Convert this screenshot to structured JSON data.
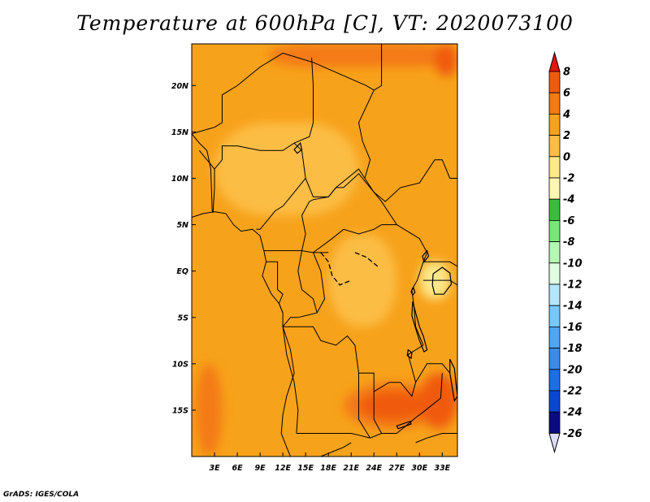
{
  "title": "Temperature at 600hPa [C], VT: 2020073100",
  "credit": "GrADS: IGES/COLA",
  "map": {
    "lon_range": [
      0,
      35
    ],
    "lat_range": [
      -20,
      24.5
    ],
    "lon_ticks": [
      {
        "value": 3,
        "label": "3E"
      },
      {
        "value": 6,
        "label": "6E"
      },
      {
        "value": 9,
        "label": "9E"
      },
      {
        "value": 12,
        "label": "12E"
      },
      {
        "value": 15,
        "label": "15E"
      },
      {
        "value": 18,
        "label": "18E"
      },
      {
        "value": 21,
        "label": "21E"
      },
      {
        "value": 24,
        "label": "24E"
      },
      {
        "value": 27,
        "label": "27E"
      },
      {
        "value": 30,
        "label": "30E"
      },
      {
        "value": 33,
        "label": "33E"
      }
    ],
    "lat_ticks": [
      {
        "value": 20,
        "label": "20N"
      },
      {
        "value": 15,
        "label": "15N"
      },
      {
        "value": 10,
        "label": "10N"
      },
      {
        "value": 5,
        "label": "5N"
      },
      {
        "value": 0,
        "label": "EQ"
      },
      {
        "value": -5,
        "label": "5S"
      },
      {
        "value": -10,
        "label": "10S"
      },
      {
        "value": -15,
        "label": "15S"
      }
    ],
    "background_color": "#f7a21b",
    "regions": [
      {
        "name": "warm-north-band",
        "lon": [
          10,
          35
        ],
        "lat": [
          22,
          24.5
        ],
        "rx": 6,
        "ry": 2,
        "level": 4,
        "color": "#f47a12"
      },
      {
        "name": "nigeria-cool",
        "lon": [
          11,
          12.5
        ],
        "lat": [
          11,
          12.5
        ],
        "rx": 1.5,
        "ry": 1.5,
        "level": -2,
        "color": "#fde88a"
      },
      {
        "name": "sahel-mild",
        "lon": [
          3,
          22
        ],
        "lat": [
          6,
          16
        ],
        "rx": 7,
        "ry": 5,
        "level": 0,
        "color": "#fcbd45"
      },
      {
        "name": "congo-mild",
        "lon": [
          18,
          27
        ],
        "lat": [
          -6,
          4
        ],
        "rx": 4,
        "ry": 5,
        "level": 0,
        "color": "#fcbd45"
      },
      {
        "name": "lake-victoria-cool",
        "lon": [
          30,
          34
        ],
        "lat": [
          -3,
          1
        ],
        "rx": 1.5,
        "ry": 2,
        "level": -2,
        "color": "#fde88a"
      },
      {
        "name": "sw-warm",
        "lon": [
          0.5,
          4
        ],
        "lat": [
          -20,
          -10
        ],
        "rx": 1.8,
        "ry": 5,
        "level": 4,
        "color": "#f47a12"
      },
      {
        "name": "angola-zambia-warm",
        "lon": [
          20,
          33
        ],
        "lat": [
          -17,
          -12
        ],
        "rx": 7,
        "ry": 3,
        "level": 4,
        "color": "#f47a12"
      },
      {
        "name": "zambia-hot",
        "lon": [
          22,
          31
        ],
        "lat": [
          -16,
          -13
        ],
        "rx": 4,
        "ry": 1.8,
        "level": 6,
        "color": "#f05a0e"
      },
      {
        "name": "mozambique-warm",
        "lon": [
          30,
          35
        ],
        "lat": [
          -17,
          -11
        ],
        "rx": 2.5,
        "ry": 3,
        "level": 6,
        "color": "#f05a0e"
      },
      {
        "name": "red-sea-warm",
        "lon": [
          32,
          35
        ],
        "lat": [
          21,
          24.5
        ],
        "rx": 2,
        "ry": 2,
        "level": 6,
        "color": "#f05a0e"
      }
    ],
    "borders": [
      [
        [
          0,
          14.8
        ],
        [
          3,
          15.5
        ],
        [
          4,
          16
        ],
        [
          4,
          19
        ],
        [
          6,
          20
        ],
        [
          9,
          22
        ],
        [
          12,
          23.5
        ],
        [
          14,
          23
        ],
        [
          16,
          22.5
        ],
        [
          23,
          20
        ],
        [
          24,
          19.5
        ],
        [
          25,
          20
        ],
        [
          25,
          22
        ],
        [
          25,
          24.5
        ]
      ],
      [
        [
          1,
          13
        ],
        [
          2,
          12
        ],
        [
          3,
          11
        ],
        [
          3,
          9
        ],
        [
          2.8,
          6.3
        ]
      ],
      [
        [
          2.8,
          6.3
        ],
        [
          2.7,
          6.5
        ],
        [
          2.5,
          11
        ],
        [
          2,
          13
        ],
        [
          1,
          13.8
        ],
        [
          0,
          14.8
        ]
      ],
      [
        [
          3,
          11
        ],
        [
          4,
          12
        ],
        [
          4,
          13.5
        ],
        [
          6,
          13.5
        ],
        [
          9,
          13
        ],
        [
          12,
          13
        ],
        [
          13.5,
          13.8
        ],
        [
          14.5,
          13
        ],
        [
          15,
          10
        ],
        [
          14,
          9
        ],
        [
          13,
          8
        ],
        [
          12,
          7
        ],
        [
          11,
          6.5
        ],
        [
          9,
          4.5
        ],
        [
          8.5,
          4.5
        ]
      ],
      [
        [
          13.5,
          13.8
        ],
        [
          15.5,
          14.5
        ],
        [
          16,
          16
        ],
        [
          16,
          20
        ],
        [
          15.8,
          23
        ]
      ],
      [
        [
          15,
          10
        ],
        [
          16,
          8
        ],
        [
          18,
          8
        ],
        [
          19,
          9
        ],
        [
          22,
          11
        ],
        [
          22.8,
          10
        ],
        [
          23.5,
          12
        ],
        [
          22.5,
          14
        ],
        [
          22,
          16
        ],
        [
          24,
          19.5
        ]
      ],
      [
        [
          14.5,
          2.2
        ],
        [
          15,
          4
        ],
        [
          14.5,
          6
        ],
        [
          15.5,
          7.5
        ],
        [
          16,
          7.7
        ],
        [
          18,
          8
        ],
        [
          19,
          9
        ],
        [
          20,
          9
        ],
        [
          22,
          10.5
        ],
        [
          23.5,
          9
        ],
        [
          25,
          7.5
        ],
        [
          27,
          5
        ],
        [
          25,
          5
        ],
        [
          24,
          4.5
        ],
        [
          22,
          4
        ],
        [
          20,
          4.5
        ],
        [
          18.5,
          3.5
        ],
        [
          16,
          2
        ]
      ],
      [
        [
          22.8,
          10
        ],
        [
          24,
          8.5
        ],
        [
          25.5,
          7.5
        ],
        [
          27.5,
          9
        ],
        [
          30,
          9.5
        ],
        [
          32,
          12
        ],
        [
          33,
          12
        ],
        [
          34,
          10
        ],
        [
          35,
          10
        ]
      ],
      [
        [
          9.5,
          2.2
        ],
        [
          11.3,
          2.2
        ],
        [
          14.5,
          2.2
        ],
        [
          16,
          2
        ],
        [
          18,
          2
        ]
      ],
      [
        [
          9.8,
          1
        ],
        [
          11.3,
          1
        ],
        [
          11.3,
          -2
        ],
        [
          12,
          -2.5
        ],
        [
          11.5,
          -3.5
        ],
        [
          12,
          -4.5
        ]
      ],
      [
        [
          14.5,
          2.2
        ],
        [
          14,
          0
        ],
        [
          14.5,
          -2
        ],
        [
          16,
          -3
        ],
        [
          16.5,
          -4.5
        ]
      ],
      [
        [
          16,
          2
        ],
        [
          17,
          0
        ],
        [
          17.5,
          -3
        ],
        [
          16.5,
          -4.5
        ],
        [
          14,
          -5
        ],
        [
          13,
          -5
        ],
        [
          12,
          -6
        ]
      ],
      [
        [
          27,
          5
        ],
        [
          28,
          4.5
        ],
        [
          30,
          3.5
        ],
        [
          31,
          2
        ],
        [
          30.5,
          1
        ],
        [
          29.7,
          -1
        ],
        [
          29,
          -2
        ],
        [
          29.3,
          -4
        ],
        [
          29.5,
          -6
        ],
        [
          30.5,
          -8
        ]
      ],
      [
        [
          12,
          -6
        ],
        [
          13,
          -6
        ],
        [
          16,
          -6
        ],
        [
          17,
          -7.5
        ],
        [
          19,
          -8
        ],
        [
          20.5,
          -7
        ],
        [
          21.5,
          -8
        ],
        [
          22,
          -11
        ],
        [
          24,
          -11
        ],
        [
          24,
          -13
        ],
        [
          26,
          -12
        ],
        [
          27.5,
          -12
        ],
        [
          29,
          -13.5
        ],
        [
          29.5,
          -12
        ],
        [
          28.5,
          -9
        ],
        [
          30.5,
          -8
        ]
      ],
      [
        [
          13.8,
          -17.5
        ],
        [
          14,
          -15
        ],
        [
          13.5,
          -12
        ],
        [
          12.5,
          -9
        ],
        [
          12,
          -6
        ]
      ],
      [
        [
          13.8,
          -17.5
        ],
        [
          17,
          -17.5
        ],
        [
          21,
          -17.5
        ],
        [
          22,
          -17.7
        ],
        [
          23.5,
          -18
        ],
        [
          25,
          -17.5
        ],
        [
          27,
          -17.5
        ],
        [
          28.5,
          -16.5
        ],
        [
          29.5,
          -15.8
        ],
        [
          30.5,
          -15.2
        ],
        [
          32.8,
          -13.7
        ],
        [
          33,
          -11
        ]
      ],
      [
        [
          22,
          -11
        ],
        [
          22,
          -13
        ],
        [
          22,
          -16
        ],
        [
          23.5,
          -18
        ]
      ],
      [
        [
          24,
          -13
        ],
        [
          24,
          -16
        ],
        [
          25,
          -17.5
        ]
      ],
      [
        [
          29.5,
          -12
        ],
        [
          31,
          -10
        ],
        [
          33,
          -10
        ],
        [
          34,
          -11
        ]
      ],
      [
        [
          30.5,
          1
        ],
        [
          34,
          1
        ],
        [
          35,
          0.5
        ]
      ],
      [
        [
          30.5,
          -1
        ],
        [
          34,
          -1
        ],
        [
          35,
          -1.5
        ]
      ],
      [
        [
          14,
          -20
        ],
        [
          17,
          -20
        ],
        [
          20,
          -19
        ],
        [
          21,
          -18.5
        ]
      ],
      [
        [
          29.5,
          -18.5
        ],
        [
          31,
          -18
        ],
        [
          33,
          -17.5
        ],
        [
          35,
          -17.5
        ]
      ]
    ],
    "coastline": [
      [
        0,
        5.8
      ],
      [
        1.5,
        6.2
      ],
      [
        3,
        6.4
      ],
      [
        4.5,
        6.2
      ],
      [
        5.5,
        5
      ],
      [
        6.5,
        4.3
      ],
      [
        8,
        4.5
      ],
      [
        9,
        3.8
      ],
      [
        9.5,
        2.2
      ],
      [
        9.8,
        1
      ],
      [
        9.3,
        -0.5
      ],
      [
        10.5,
        -2.5
      ],
      [
        11.5,
        -3.5
      ],
      [
        12,
        -4.5
      ],
      [
        12,
        -6
      ],
      [
        13,
        -8.5
      ],
      [
        13.5,
        -11
      ],
      [
        12.5,
        -13.5
      ],
      [
        12,
        -15.5
      ],
      [
        11.8,
        -17.5
      ],
      [
        12.5,
        -19
      ],
      [
        13,
        -20
      ]
    ],
    "lakes": [
      {
        "name": "lake-victoria",
        "points": [
          [
            31.8,
            -0.3
          ],
          [
            33,
            0.4
          ],
          [
            34,
            -0.2
          ],
          [
            34.2,
            -1.4
          ],
          [
            33.2,
            -2.5
          ],
          [
            32,
            -2.5
          ],
          [
            31.7,
            -1.5
          ]
        ]
      },
      {
        "name": "lake-tanganyika",
        "points": [
          [
            29.1,
            -3.3
          ],
          [
            29.5,
            -4.5
          ],
          [
            30,
            -6
          ],
          [
            30.5,
            -7
          ],
          [
            31,
            -8.5
          ],
          [
            30.6,
            -8.7
          ],
          [
            30,
            -7.5
          ],
          [
            29.5,
            -6.2
          ],
          [
            29,
            -4.8
          ]
        ]
      },
      {
        "name": "lake-malawi",
        "points": [
          [
            34,
            -9.5
          ],
          [
            34.6,
            -10.5
          ],
          [
            34.8,
            -12
          ],
          [
            35,
            -13.5
          ],
          [
            34.6,
            -14
          ],
          [
            34.3,
            -12.5
          ],
          [
            34,
            -11
          ]
        ]
      },
      {
        "name": "lake-albert",
        "points": [
          [
            30.4,
            1.6
          ],
          [
            31,
            2.2
          ],
          [
            31.2,
            1.6
          ],
          [
            30.6,
            1
          ]
        ]
      },
      {
        "name": "lake-chad",
        "points": [
          [
            13.5,
            13.1
          ],
          [
            14.3,
            13.8
          ],
          [
            14.5,
            13.1
          ],
          [
            13.9,
            12.7
          ]
        ]
      },
      {
        "name": "lake-mweru",
        "points": [
          [
            28.5,
            -8.5
          ],
          [
            29,
            -8.8
          ],
          [
            28.9,
            -9.4
          ],
          [
            28.4,
            -9.1
          ]
        ]
      },
      {
        "name": "lake-kivu",
        "points": [
          [
            29.2,
            -1.8
          ],
          [
            29.4,
            -2.3
          ],
          [
            29.1,
            -2.6
          ],
          [
            28.9,
            -2.2
          ]
        ]
      },
      {
        "name": "lake-kariba",
        "points": [
          [
            27,
            -16.7
          ],
          [
            28.8,
            -16.2
          ],
          [
            28.9,
            -16.5
          ],
          [
            27.2,
            -17
          ]
        ]
      }
    ],
    "rivers": [
      [
        [
          17,
          2
        ],
        [
          18,
          1
        ],
        [
          18.5,
          -0.5
        ],
        [
          19.5,
          -1.5
        ],
        [
          21,
          -1
        ]
      ],
      [
        [
          21.5,
          2
        ],
        [
          23,
          1.5
        ],
        [
          24.5,
          0.5
        ]
      ]
    ]
  },
  "legend": {
    "labels": [
      "8",
      "6",
      "4",
      "2",
      "0",
      "-2",
      "-4",
      "-6",
      "-8",
      "-10",
      "-12",
      "-14",
      "-16",
      "-18",
      "-20",
      "-22",
      "-24",
      "-26"
    ],
    "colors": [
      "#f05a0e",
      "#f47a12",
      "#f7a21b",
      "#fcbd45",
      "#fde88a",
      "#fef7b4",
      "#3cbc3c",
      "#78e678",
      "#b4f8b4",
      "#e1ffe1",
      "#b4e6ff",
      "#78c8ff",
      "#50a5f5",
      "#3c8ce6",
      "#1e6ee6",
      "#0a46d2",
      "#0a0a82"
    ],
    "top_color": "#e1180a",
    "bottom_color": "#dcdcff"
  }
}
